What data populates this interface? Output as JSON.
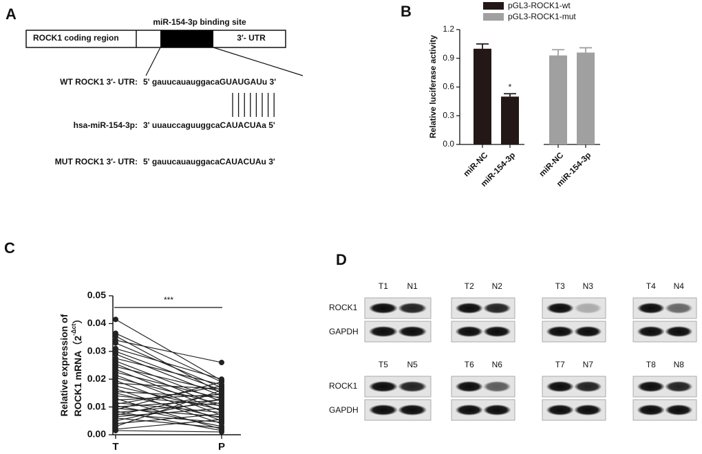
{
  "panel_a": {
    "label": "A",
    "site_title": "miR-154-3p binding site",
    "coding_region": "ROCK1 coding region",
    "utr": "3′-  UTR",
    "rows": [
      {
        "name": "WT ROCK1 3′-  UTR:",
        "sequence": "5' gauucauauggacaGUAUGAUu 3'"
      },
      {
        "name": "hsa-miR-154-3p:",
        "sequence": "3' uuauccaguuggcaCAUACUAa 5'"
      },
      {
        "name": "MUT ROCK1 3′-  UTR:",
        "sequence": "5' gauucauauggacaCAUACUAu 3'"
      }
    ]
  },
  "chart_data": [
    {
      "type": "bar",
      "label": "B",
      "ylabel": "Relative luciferase activity",
      "categories": [
        "miR-NC",
        "miR-154-3p",
        "miR-NC",
        "miR-154-3p"
      ],
      "series": [
        {
          "name": "pGL3-ROCK1-wt",
          "color": "#231815",
          "values": [
            1.0,
            0.5,
            null,
            null
          ],
          "errors": [
            0.05,
            0.03,
            null,
            null
          ]
        },
        {
          "name": "pGL3-ROCK1-mut",
          "color": "#a0a0a0",
          "values": [
            null,
            null,
            0.93,
            0.96
          ],
          "errors": [
            null,
            null,
            0.06,
            0.05
          ]
        }
      ],
      "annotation": "*",
      "ylim": [
        0,
        1.2
      ],
      "yticks": [
        {
          "value": 0,
          "label": "0.0"
        },
        0.3,
        0.6,
        0.9,
        1.2
      ],
      "legend": "top"
    },
    {
      "type": "paired",
      "label": "C",
      "ylabel": {
        "line1": "Relative expression of",
        "line2": "ROCK1 mRNA（2",
        "sup": "-Δct",
        "close": "）"
      },
      "categories": [
        "T",
        "P"
      ],
      "annotation": "***",
      "color": "#222222",
      "pairs": [
        [
          0.0415,
          0.0195
        ],
        [
          0.0365,
          0.019
        ],
        [
          0.0355,
          0.015
        ],
        [
          0.034,
          0.026
        ],
        [
          0.033,
          0.017
        ],
        [
          0.031,
          0.02
        ],
        [
          0.03,
          0.016
        ],
        [
          0.029,
          0.014
        ],
        [
          0.0275,
          0.018
        ],
        [
          0.0265,
          0.012
        ],
        [
          0.0255,
          0.01
        ],
        [
          0.0245,
          0.0155
        ],
        [
          0.0235,
          0.0085
        ],
        [
          0.0225,
          0.013
        ],
        [
          0.0215,
          0.007
        ],
        [
          0.0205,
          0.011
        ],
        [
          0.0195,
          0.005
        ],
        [
          0.0185,
          0.0165
        ],
        [
          0.0175,
          0.009
        ],
        [
          0.0165,
          0.004
        ],
        [
          0.0155,
          0.0135
        ],
        [
          0.015,
          0.006
        ],
        [
          0.014,
          0.0105
        ],
        [
          0.013,
          0.002
        ],
        [
          0.0125,
          0.0145
        ],
        [
          0.0115,
          0.008
        ],
        [
          0.011,
          0.0175
        ],
        [
          0.0105,
          0.003
        ],
        [
          0.01,
          0.0125
        ],
        [
          0.0095,
          0.0065
        ],
        [
          0.009,
          0.019
        ],
        [
          0.0085,
          0.0015
        ],
        [
          0.008,
          0.0115
        ],
        [
          0.0075,
          0.0045
        ],
        [
          0.007,
          0.015
        ],
        [
          0.0065,
          0.0095
        ],
        [
          0.006,
          0.0025
        ],
        [
          0.005,
          0.013
        ],
        [
          0.004,
          0.0075
        ],
        [
          0.003,
          0.016
        ],
        [
          0.002,
          0.0055
        ],
        [
          0.0015,
          0.001
        ]
      ],
      "ylim": [
        0,
        0.05
      ],
      "yticks": [
        {
          "value": 0,
          "label": "0.00"
        },
        0.01,
        0.02,
        0.03,
        0.04,
        0.05
      ]
    }
  ],
  "panel_d": {
    "label": "D",
    "rows": [
      {
        "proteins": [
          "ROCK1",
          "GAPDH"
        ],
        "blots": [
          [
            "T1",
            "N1"
          ],
          [
            "T2",
            "N2"
          ],
          [
            "T3",
            "N3"
          ],
          [
            "T4",
            "N4"
          ]
        ]
      },
      {
        "proteins": [
          "ROCK1",
          "GAPDH"
        ],
        "blots": [
          [
            "T5",
            "N5"
          ],
          [
            "T6",
            "N6"
          ],
          [
            "T7",
            "N7"
          ],
          [
            "T8",
            "N8"
          ]
        ]
      }
    ]
  }
}
